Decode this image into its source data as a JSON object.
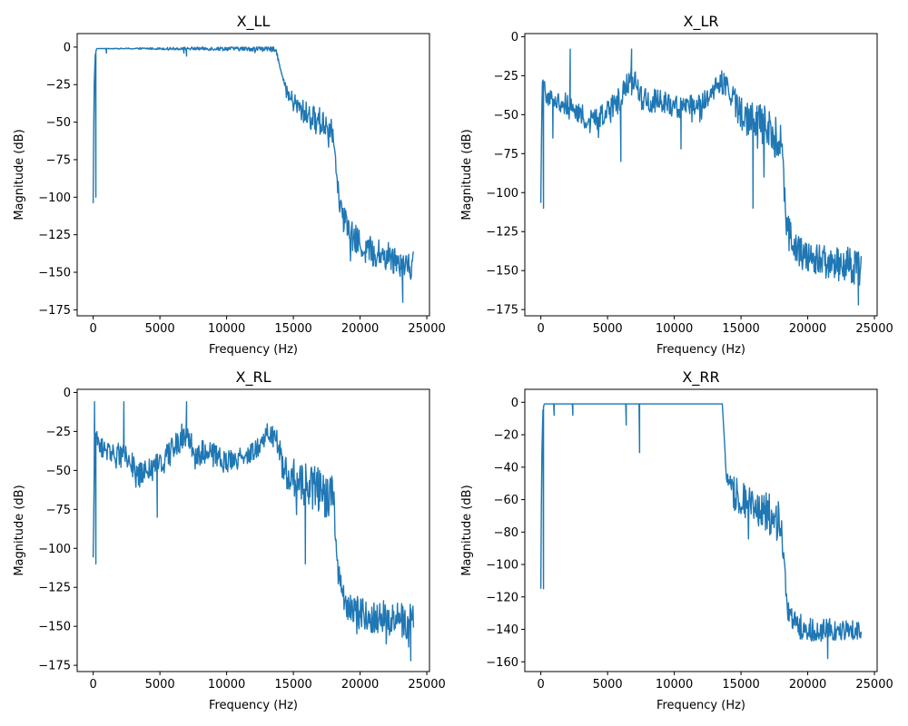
{
  "chart_data": [
    {
      "type": "line",
      "title": "X_LL",
      "xlabel": "Frequency (Hz)",
      "ylabel": "Magnitude (dB)",
      "xlim": [
        -1200,
        25200
      ],
      "ylim": [
        -179,
        9
      ],
      "xticks": [
        0,
        5000,
        10000,
        15000,
        20000,
        25000
      ],
      "yticks": [
        0,
        -25,
        -50,
        -75,
        -100,
        -125,
        -150,
        -175
      ],
      "series": [
        {
          "name": "X_LL",
          "color": "#1f77b4",
          "profile": [
            [
              0,
              -104
            ],
            [
              60,
              -30
            ],
            [
              150,
              -5
            ],
            [
              250,
              -1
            ],
            [
              13700,
              -1
            ],
            [
              14100,
              -18
            ],
            [
              14600,
              -32
            ],
            [
              15300,
              -40
            ],
            [
              16500,
              -48
            ],
            [
              17700,
              -52
            ],
            [
              18000,
              -55
            ],
            [
              18400,
              -100
            ],
            [
              19200,
              -125
            ],
            [
              20500,
              -135
            ],
            [
              24000,
              -145
            ]
          ],
          "noise": [
            [
              0,
              0
            ],
            [
              14300,
              2
            ],
            [
              15000,
              7
            ],
            [
              17900,
              11
            ],
            [
              18300,
              6
            ],
            [
              19000,
              10
            ],
            [
              24000,
              11
            ]
          ],
          "dips": [
            [
              200,
              -100
            ],
            [
              1000,
              -4
            ],
            [
              7000,
              -6
            ],
            [
              6800,
              -4
            ],
            [
              23200,
              -170
            ]
          ]
        }
      ]
    },
    {
      "type": "line",
      "title": "X_LR",
      "xlabel": "Frequency (Hz)",
      "ylabel": "Magnitude (dB)",
      "xlim": [
        -1200,
        25200
      ],
      "ylim": [
        -179,
        2
      ],
      "xticks": [
        0,
        5000,
        10000,
        15000,
        20000,
        25000
      ],
      "yticks": [
        0,
        -25,
        -50,
        -75,
        -100,
        -125,
        -150,
        -175
      ],
      "series": [
        {
          "name": "X_LR",
          "color": "#1f77b4",
          "profile": [
            [
              0,
              -110
            ],
            [
              100,
              -30
            ],
            [
              500,
              -38
            ],
            [
              1500,
              -42
            ],
            [
              2500,
              -45
            ],
            [
              3500,
              -55
            ],
            [
              4500,
              -52
            ],
            [
              5500,
              -45
            ],
            [
              6500,
              -30
            ],
            [
              7000,
              -28
            ],
            [
              7500,
              -40
            ],
            [
              9000,
              -42
            ],
            [
              10000,
              -45
            ],
            [
              11000,
              -45
            ],
            [
              12500,
              -40
            ],
            [
              13500,
              -28
            ],
            [
              14000,
              -35
            ],
            [
              15000,
              -48
            ],
            [
              16500,
              -58
            ],
            [
              17500,
              -62
            ],
            [
              18000,
              -70
            ],
            [
              18400,
              -118
            ],
            [
              19000,
              -135
            ],
            [
              20000,
              -142
            ],
            [
              24000,
              -148
            ]
          ],
          "noise": [
            [
              0,
              6
            ],
            [
              6000,
              9
            ],
            [
              13000,
              6
            ],
            [
              14200,
              9
            ],
            [
              16000,
              14
            ],
            [
              18000,
              16
            ],
            [
              18600,
              8
            ],
            [
              20000,
              11
            ],
            [
              24000,
              12
            ]
          ],
          "dips": [
            [
              200,
              -110
            ],
            [
              900,
              -65
            ],
            [
              2200,
              -8
            ],
            [
              6800,
              -8
            ],
            [
              6000,
              -80
            ],
            [
              10500,
              -72
            ],
            [
              15900,
              -110
            ],
            [
              23800,
              -172
            ]
          ]
        }
      ]
    },
    {
      "type": "line",
      "title": "X_RL",
      "xlabel": "Frequency (Hz)",
      "ylabel": "Magnitude (dB)",
      "xlim": [
        -1200,
        25200
      ],
      "ylim": [
        -179,
        2
      ],
      "xticks": [
        0,
        5000,
        10000,
        15000,
        20000,
        25000
      ],
      "yticks": [
        0,
        -25,
        -50,
        -75,
        -100,
        -125,
        -150,
        -175
      ],
      "series": [
        {
          "name": "X_RL",
          "color": "#1f77b4",
          "profile": [
            [
              0,
              -110
            ],
            [
              100,
              -28
            ],
            [
              500,
              -35
            ],
            [
              1500,
              -38
            ],
            [
              2500,
              -42
            ],
            [
              3500,
              -52
            ],
            [
              4500,
              -50
            ],
            [
              5500,
              -42
            ],
            [
              6500,
              -30
            ],
            [
              7000,
              -25
            ],
            [
              7500,
              -38
            ],
            [
              9000,
              -40
            ],
            [
              10000,
              -45
            ],
            [
              11000,
              -42
            ],
            [
              12500,
              -35
            ],
            [
              13000,
              -25
            ],
            [
              13700,
              -30
            ],
            [
              14300,
              -50
            ],
            [
              16000,
              -60
            ],
            [
              17500,
              -65
            ],
            [
              18000,
              -70
            ],
            [
              18400,
              -118
            ],
            [
              19000,
              -138
            ],
            [
              20000,
              -142
            ],
            [
              24000,
              -148
            ]
          ],
          "noise": [
            [
              0,
              6
            ],
            [
              6000,
              9
            ],
            [
              13000,
              6
            ],
            [
              14200,
              10
            ],
            [
              16000,
              14
            ],
            [
              18000,
              16
            ],
            [
              18600,
              8
            ],
            [
              20000,
              11
            ],
            [
              24000,
              12
            ]
          ],
          "dips": [
            [
              200,
              -110
            ],
            [
              100,
              -6
            ],
            [
              2300,
              -6
            ],
            [
              7000,
              -6
            ],
            [
              4800,
              -80
            ],
            [
              15900,
              -110
            ],
            [
              23800,
              -172
            ]
          ]
        }
      ]
    },
    {
      "type": "line",
      "title": "X_RR",
      "xlabel": "Frequency (Hz)",
      "ylabel": "Magnitude (dB)",
      "xlim": [
        -1200,
        25200
      ],
      "ylim": [
        -166,
        8
      ],
      "xticks": [
        0,
        5000,
        10000,
        15000,
        20000,
        25000
      ],
      "yticks": [
        0,
        -20,
        -40,
        -60,
        -80,
        -100,
        -120,
        -140,
        -160
      ],
      "series": [
        {
          "name": "X_RR",
          "color": "#1f77b4",
          "profile": [
            [
              0,
              -115
            ],
            [
              60,
              -40
            ],
            [
              150,
              -5
            ],
            [
              250,
              -1
            ],
            [
              13600,
              -1
            ],
            [
              13900,
              -45
            ],
            [
              14300,
              -55
            ],
            [
              15500,
              -62
            ],
            [
              17000,
              -68
            ],
            [
              17800,
              -72
            ],
            [
              18100,
              -85
            ],
            [
              18500,
              -128
            ],
            [
              19200,
              -138
            ],
            [
              20500,
              -140
            ],
            [
              24000,
              -141
            ]
          ],
          "noise": [
            [
              0,
              0
            ],
            [
              13800,
              0
            ],
            [
              14200,
              10
            ],
            [
              16000,
              12
            ],
            [
              17800,
              14
            ],
            [
              18200,
              7
            ],
            [
              19000,
              8
            ],
            [
              24000,
              6
            ]
          ],
          "dips": [
            [
              200,
              -115
            ],
            [
              1000,
              -8
            ],
            [
              2400,
              -8
            ],
            [
              6400,
              -14
            ],
            [
              7400,
              -31
            ],
            [
              21500,
              -158
            ]
          ]
        }
      ]
    }
  ]
}
